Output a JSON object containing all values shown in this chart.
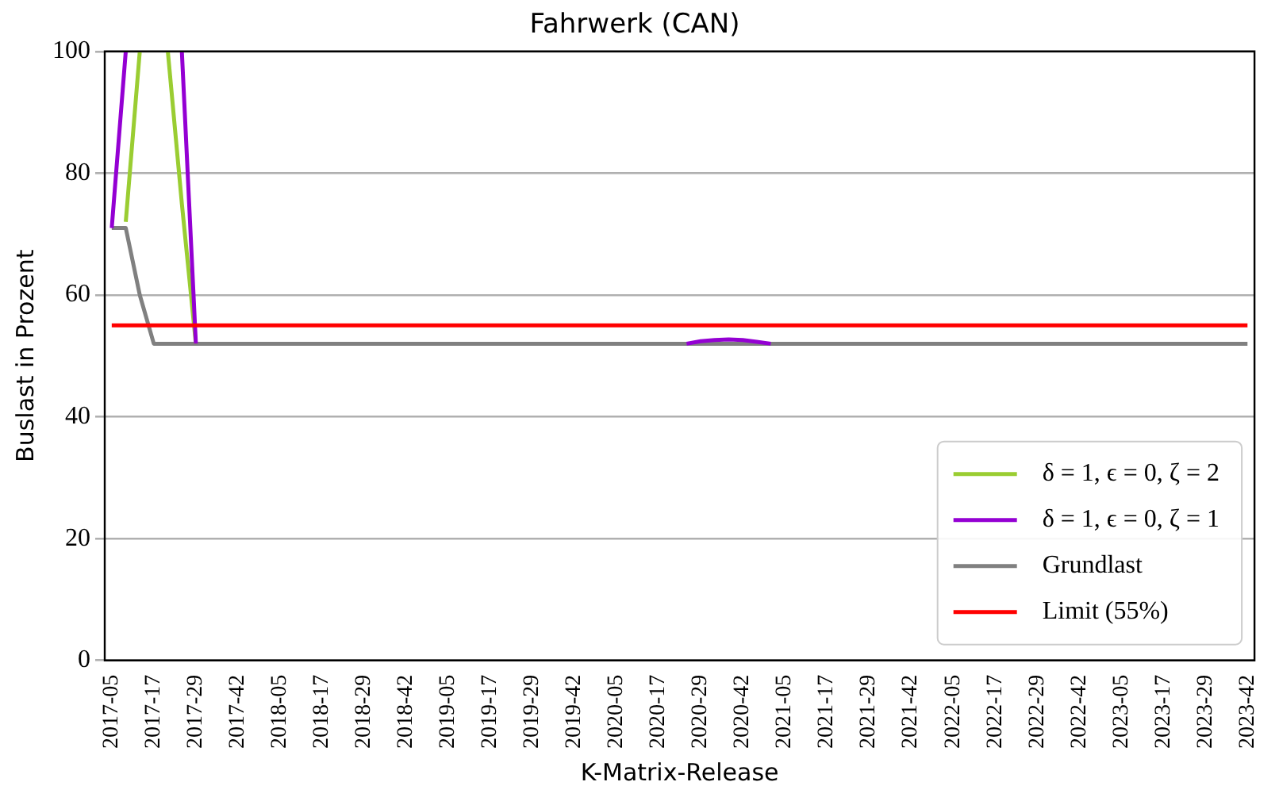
{
  "chart_data": {
    "type": "line",
    "title": "Fahrwerk (CAN)",
    "xlabel": "K-Matrix-Release",
    "ylabel": "Buslast in Prozent",
    "categories": [
      "2017-05",
      null,
      null,
      "2017-17",
      null,
      null,
      "2017-29",
      null,
      null,
      "2017-42",
      null,
      null,
      "2018-05",
      null,
      null,
      "2018-17",
      null,
      null,
      "2018-29",
      null,
      null,
      "2018-42",
      null,
      null,
      "2019-05",
      null,
      null,
      "2019-17",
      null,
      null,
      "2019-29",
      null,
      null,
      "2019-42",
      null,
      null,
      "2020-05",
      null,
      null,
      "2020-17",
      null,
      null,
      "2020-29",
      null,
      null,
      "2020-42",
      null,
      null,
      "2021-05",
      null,
      null,
      "2021-17",
      null,
      null,
      "2021-29",
      null,
      null,
      "2021-42",
      null,
      null,
      "2022-05",
      null,
      null,
      "2022-17",
      null,
      null,
      "2022-29",
      null,
      null,
      "2022-42",
      null,
      null,
      "2023-05",
      null,
      null,
      "2023-17",
      null,
      null,
      "2023-29",
      null,
      null,
      "2023-42"
    ],
    "series": [
      {
        "name": "δ = 1, ϵ = 0, ζ = 2",
        "color": "#9acd32",
        "values": [
          null,
          72,
          100,
          null,
          100,
          75,
          52,
          null,
          null,
          null,
          null,
          null,
          null,
          null,
          null,
          null,
          null,
          null,
          null,
          null,
          null,
          null,
          null,
          null,
          null,
          null,
          null,
          null,
          null,
          null,
          null,
          null,
          null,
          null,
          null,
          null,
          null,
          null,
          null,
          null,
          null,
          null,
          null,
          null,
          null,
          null,
          null,
          null,
          null,
          null,
          null,
          null,
          null,
          null,
          null,
          null,
          null,
          null,
          null,
          null,
          null,
          null,
          null,
          null,
          null,
          null,
          null,
          null,
          null,
          null,
          null,
          null,
          null,
          null,
          null,
          null,
          null,
          null,
          null,
          null,
          null,
          null
        ]
      },
      {
        "name": "δ = 1, ϵ = 0, ζ = 1",
        "color": "#9400d3",
        "values": [
          71,
          100,
          null,
          null,
          null,
          100,
          52,
          null,
          null,
          null,
          null,
          null,
          null,
          null,
          null,
          null,
          null,
          null,
          null,
          null,
          null,
          null,
          null,
          null,
          null,
          null,
          null,
          null,
          null,
          null,
          null,
          null,
          null,
          null,
          null,
          null,
          null,
          null,
          null,
          null,
          null,
          52,
          52.4,
          52.6,
          52.7,
          52.6,
          52.3,
          52,
          null,
          null,
          null,
          null,
          null,
          null,
          null,
          null,
          null,
          null,
          null,
          null,
          null,
          null,
          null,
          null,
          null,
          null,
          null,
          null,
          null,
          null,
          null,
          null,
          null,
          null,
          null,
          null,
          null,
          null,
          null,
          null,
          null,
          null
        ]
      },
      {
        "name": "Grundlast",
        "color": "#808080",
        "values": [
          71,
          71,
          60,
          52,
          52,
          52,
          52,
          52,
          52,
          52,
          52,
          52,
          52,
          52,
          52,
          52,
          52,
          52,
          52,
          52,
          52,
          52,
          52,
          52,
          52,
          52,
          52,
          52,
          52,
          52,
          52,
          52,
          52,
          52,
          52,
          52,
          52,
          52,
          52,
          52,
          52,
          52,
          52,
          52,
          52,
          52,
          52,
          52,
          52,
          52,
          52,
          52,
          52,
          52,
          52,
          52,
          52,
          52,
          52,
          52,
          52,
          52,
          52,
          52,
          52,
          52,
          52,
          52,
          52,
          52,
          52,
          52,
          52,
          52,
          52,
          52,
          52,
          52,
          52,
          52,
          52,
          52
        ]
      },
      {
        "name": "Limit (55%)",
        "color": "#ff0000",
        "values": [
          55,
          55,
          55,
          55,
          55,
          55,
          55,
          55,
          55,
          55,
          55,
          55,
          55,
          55,
          55,
          55,
          55,
          55,
          55,
          55,
          55,
          55,
          55,
          55,
          55,
          55,
          55,
          55,
          55,
          55,
          55,
          55,
          55,
          55,
          55,
          55,
          55,
          55,
          55,
          55,
          55,
          55,
          55,
          55,
          55,
          55,
          55,
          55,
          55,
          55,
          55,
          55,
          55,
          55,
          55,
          55,
          55,
          55,
          55,
          55,
          55,
          55,
          55,
          55,
          55,
          55,
          55,
          55,
          55,
          55,
          55,
          55,
          55,
          55,
          55,
          55,
          55,
          55,
          55,
          55,
          55,
          55
        ]
      }
    ],
    "ylim": [
      0,
      100
    ],
    "yticks": [
      0,
      20,
      40,
      60,
      80,
      100
    ],
    "grid": "y",
    "legend": "bottom right",
    "marker": "none",
    "line_style": "solid"
  }
}
